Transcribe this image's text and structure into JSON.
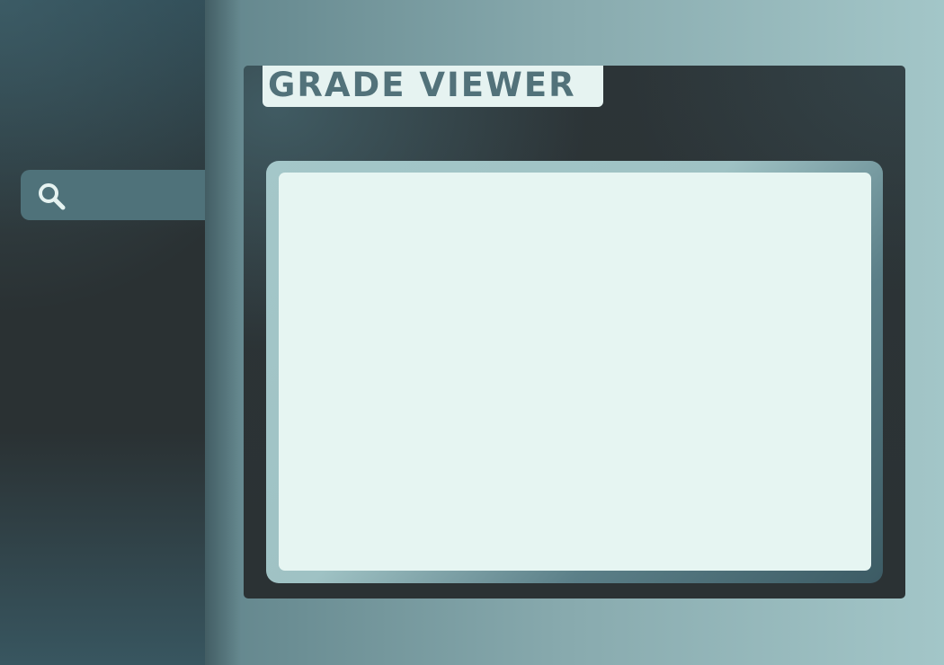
{
  "app": {
    "title": "GRADE VIEWER"
  },
  "sidebar": {
    "search": {
      "icon": "search-icon"
    }
  },
  "viewer": {
    "content": ""
  },
  "colors": {
    "sidebar_dark": "#2a3133",
    "accent_teal": "#4f727a",
    "title_text": "#52727a",
    "title_background": "#e6f3f1",
    "viewer_background": "#e6f5f2",
    "panel_background": "#2c3437"
  }
}
